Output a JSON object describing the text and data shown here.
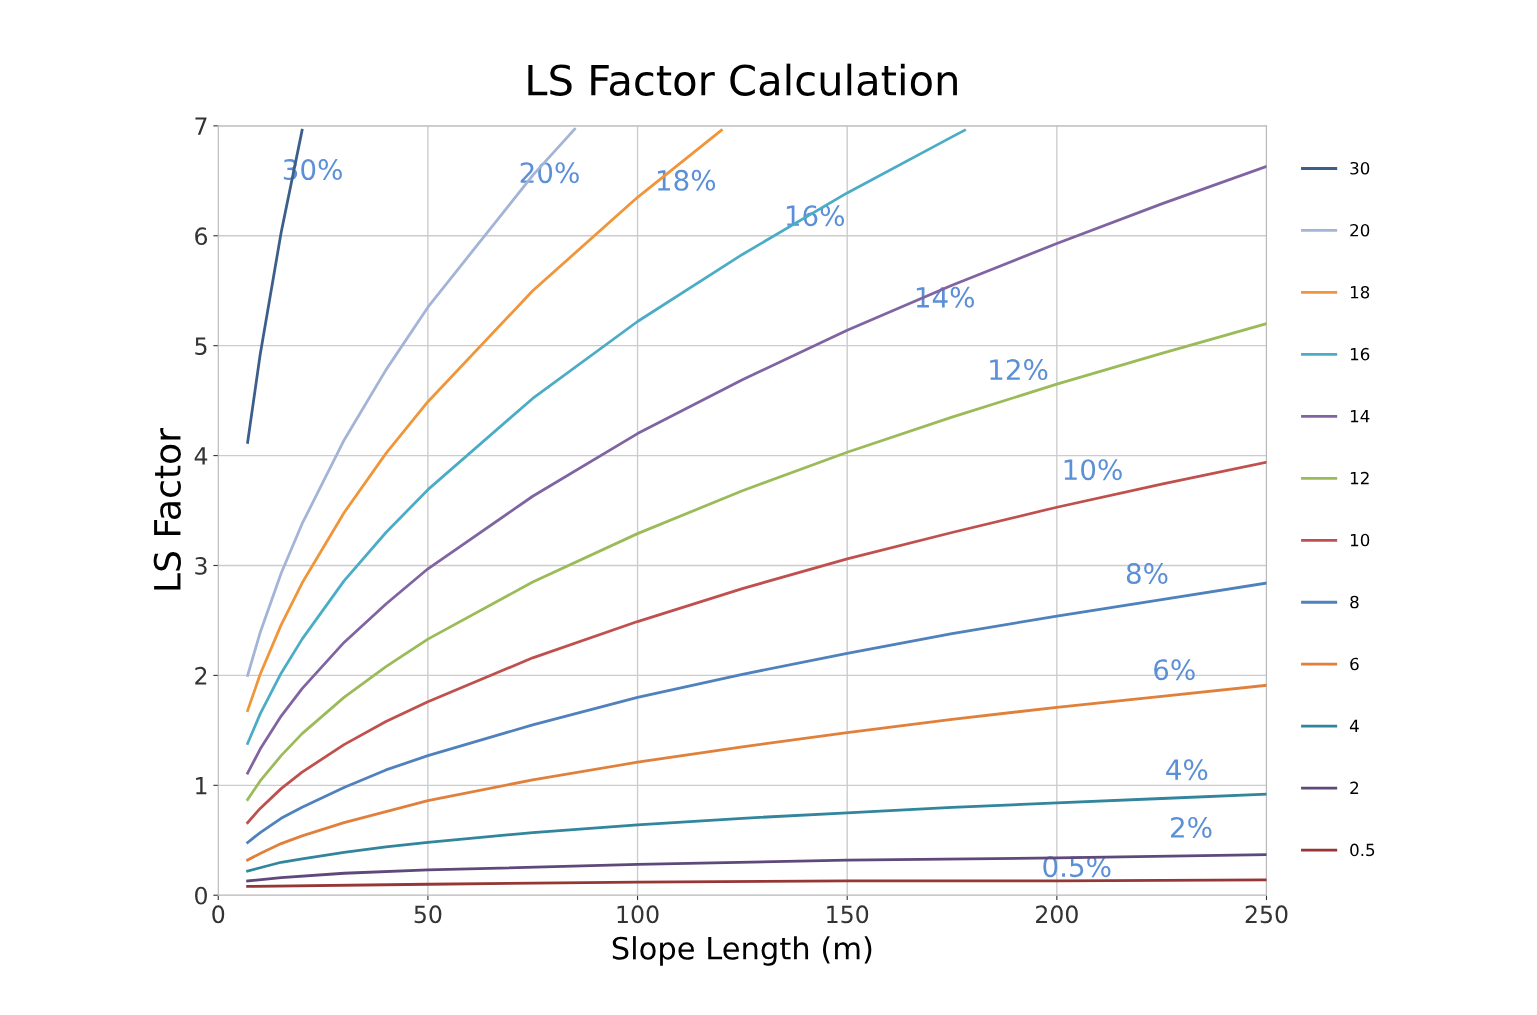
{
  "chart_data": {
    "type": "line",
    "title": "LS Factor Calculation",
    "xlabel": "Slope Length (m)",
    "ylabel": "LS Factor",
    "xlim": [
      0,
      250
    ],
    "xticks": [
      0,
      50,
      100,
      150,
      200,
      250
    ],
    "ylim": [
      0,
      7
    ],
    "yticks": [
      0,
      1,
      2,
      3,
      4,
      5,
      6,
      7
    ],
    "grid": true,
    "legend": "right",
    "marker": "none",
    "line_style": "solid",
    "series": [
      {
        "name": "30",
        "color": "#3b5f8a",
        "x": [
          7,
          10,
          15,
          20
        ],
        "values": [
          4.12,
          4.92,
          6.03,
          6.96
        ]
      },
      {
        "name": "20",
        "color": "#a3b4d6",
        "x": [
          7,
          10,
          15,
          20,
          30,
          40,
          50,
          75,
          85
        ],
        "values": [
          2.0,
          2.39,
          2.93,
          3.38,
          4.14,
          4.78,
          5.35,
          6.55,
          6.97
        ]
      },
      {
        "name": "18",
        "color": "#f0953a",
        "x": [
          7,
          10,
          15,
          20,
          30,
          40,
          50,
          75,
          100,
          120
        ],
        "values": [
          1.68,
          2.01,
          2.46,
          2.84,
          3.48,
          4.02,
          4.49,
          5.5,
          6.35,
          6.96
        ]
      },
      {
        "name": "16",
        "color": "#4bacc6",
        "x": [
          7,
          10,
          15,
          20,
          30,
          40,
          50,
          75,
          100,
          125,
          150,
          175,
          178
        ],
        "values": [
          1.38,
          1.65,
          2.02,
          2.33,
          2.86,
          3.3,
          3.69,
          4.52,
          5.22,
          5.83,
          6.39,
          6.9,
          6.96
        ]
      },
      {
        "name": "14",
        "color": "#8064a2",
        "x": [
          7,
          10,
          15,
          20,
          30,
          40,
          50,
          75,
          100,
          125,
          150,
          175,
          200,
          225,
          250
        ],
        "values": [
          1.11,
          1.33,
          1.63,
          1.88,
          2.3,
          2.65,
          2.97,
          3.63,
          4.2,
          4.69,
          5.14,
          5.55,
          5.93,
          6.29,
          6.63
        ]
      },
      {
        "name": "12",
        "color": "#9bbb59",
        "x": [
          7,
          10,
          15,
          20,
          30,
          40,
          50,
          75,
          100,
          125,
          150,
          175,
          200,
          225,
          250
        ],
        "values": [
          0.87,
          1.04,
          1.27,
          1.47,
          1.8,
          2.08,
          2.33,
          2.85,
          3.29,
          3.68,
          4.03,
          4.35,
          4.65,
          4.93,
          5.2
        ]
      },
      {
        "name": "10",
        "color": "#c0504d",
        "x": [
          7,
          10,
          15,
          20,
          30,
          40,
          50,
          75,
          100,
          125,
          150,
          175,
          200,
          225,
          250
        ],
        "values": [
          0.66,
          0.79,
          0.97,
          1.12,
          1.37,
          1.58,
          1.76,
          2.16,
          2.49,
          2.79,
          3.06,
          3.3,
          3.53,
          3.74,
          3.94
        ]
      },
      {
        "name": "8",
        "color": "#4f81bd",
        "x": [
          7,
          10,
          15,
          20,
          30,
          40,
          50,
          75,
          100,
          125,
          150,
          175,
          200,
          225,
          250
        ],
        "values": [
          0.48,
          0.57,
          0.7,
          0.8,
          0.98,
          1.14,
          1.27,
          1.55,
          1.8,
          2.01,
          2.2,
          2.38,
          2.54,
          2.69,
          2.84
        ]
      },
      {
        "name": "6",
        "color": "#e0803a",
        "x": [
          7,
          10,
          15,
          20,
          30,
          40,
          50,
          75,
          100,
          125,
          150,
          175,
          200,
          225,
          250
        ],
        "values": [
          0.32,
          0.38,
          0.47,
          0.54,
          0.66,
          0.76,
          0.86,
          1.05,
          1.21,
          1.35,
          1.48,
          1.6,
          1.71,
          1.81,
          1.91
        ]
      },
      {
        "name": "4",
        "color": "#31859c",
        "x": [
          7,
          10,
          15,
          20,
          30,
          40,
          50,
          75,
          100,
          125,
          150,
          175,
          200,
          225,
          250
        ],
        "values": [
          0.22,
          0.25,
          0.3,
          0.33,
          0.39,
          0.44,
          0.48,
          0.57,
          0.64,
          0.7,
          0.75,
          0.8,
          0.84,
          0.88,
          0.92
        ]
      },
      {
        "name": "2",
        "color": "#5f497a",
        "x": [
          7,
          15,
          30,
          50,
          100,
          150,
          200,
          250
        ],
        "values": [
          0.13,
          0.16,
          0.2,
          0.23,
          0.28,
          0.32,
          0.34,
          0.37
        ]
      },
      {
        "name": "0.5",
        "color": "#953735",
        "x": [
          7,
          50,
          100,
          150,
          200,
          250
        ],
        "values": [
          0.08,
          0.1,
          0.12,
          0.13,
          0.13,
          0.14
        ]
      }
    ],
    "annotations": [
      "30%",
      "20%",
      "18%",
      "16%",
      "14%",
      "12%",
      "10%",
      "8%",
      "6%",
      "4%",
      "2%",
      "0.5%"
    ]
  }
}
